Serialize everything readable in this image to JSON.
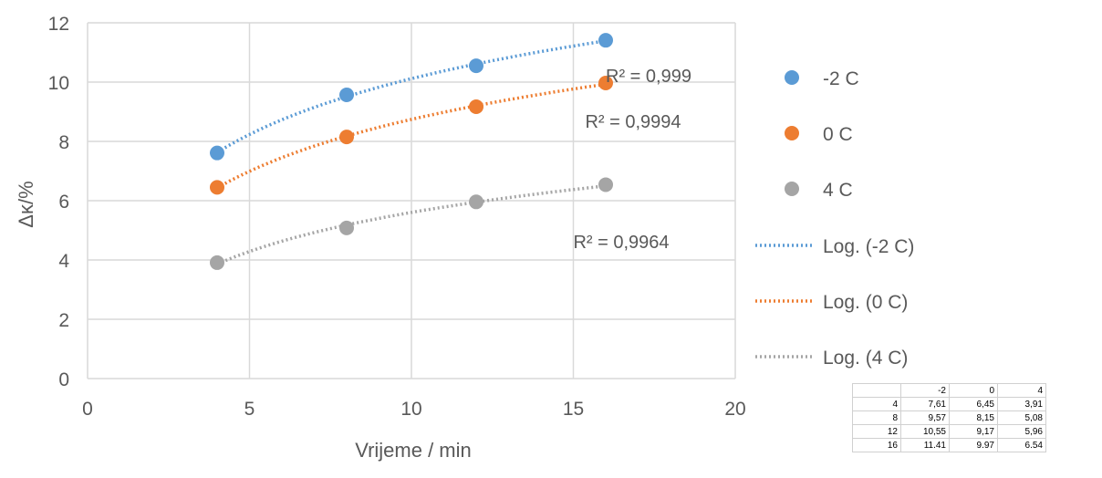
{
  "chart_data": {
    "type": "scatter",
    "xlabel": "Vrijeme / min",
    "ylabel": "Δκ/%",
    "xlim": [
      0,
      20
    ],
    "ylim": [
      0,
      12
    ],
    "xticks": [
      0,
      5,
      10,
      15,
      20
    ],
    "yticks": [
      0,
      2,
      4,
      6,
      8,
      10,
      12
    ],
    "grid": true,
    "legend_position": "right",
    "x": [
      4,
      8,
      12,
      16
    ],
    "series": [
      {
        "name": "-2 C",
        "values": [
          7.61,
          9.57,
          10.55,
          11.41
        ],
        "color": "#5b9bd5",
        "trend_label": "Log. (-2 C)",
        "r2_label": "R² = 0,999"
      },
      {
        "name": "0 C",
        "values": [
          6.45,
          8.15,
          9.17,
          9.97
        ],
        "color": "#ed7d31",
        "trend_label": "Log. (0 C)",
        "r2_label": "R² = 0,9994"
      },
      {
        "name": "4 C",
        "values": [
          3.91,
          5.08,
          5.96,
          6.54
        ],
        "color": "#a5a5a5",
        "trend_label": "Log. (4 C)",
        "r2_label": "R² = 0,9964"
      }
    ]
  },
  "table": {
    "header": [
      "",
      "-2",
      "0",
      "4"
    ],
    "rows": [
      [
        "4",
        "7,61",
        "6,45",
        "3,91"
      ],
      [
        "8",
        "9,57",
        "8,15",
        "5,08"
      ],
      [
        "12",
        "10,55",
        "9,17",
        "5,96"
      ],
      [
        "16",
        "11.41",
        "9.97",
        "6.54"
      ]
    ]
  }
}
